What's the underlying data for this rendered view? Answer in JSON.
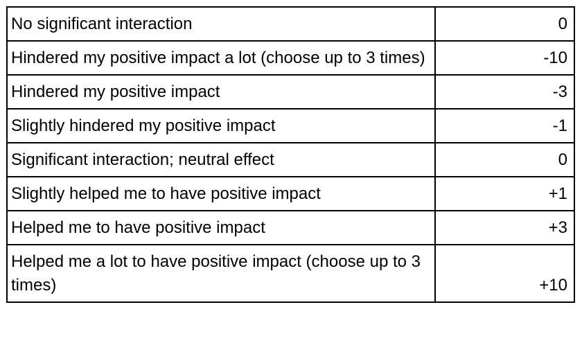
{
  "rows": [
    {
      "label": "No significant interaction",
      "value": "0"
    },
    {
      "label": "Hindered my positive impact a lot (choose up to 3 times)",
      "value": "-10"
    },
    {
      "label": "Hindered my positive impact",
      "value": "-3"
    },
    {
      "label": "Slightly hindered my positive impact",
      "value": "-1"
    },
    {
      "label": "Significant interaction; neutral effect",
      "value": "0"
    },
    {
      "label": "Slightly helped me to have positive impact",
      "value": "+1"
    },
    {
      "label": "Helped me to have positive impact",
      "value": "+3"
    },
    {
      "label": "Helped me a lot to have positive impact (choose up to 3 times)",
      "value": "+10"
    }
  ]
}
